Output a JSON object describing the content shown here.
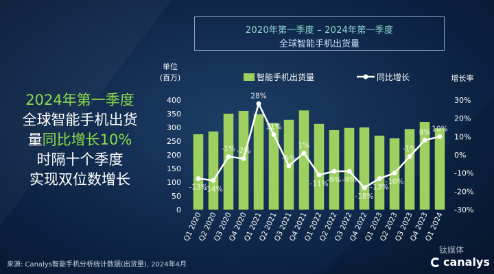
{
  "chart_data": {
    "type": "bar",
    "title": "2020年第一季度 – 2024年第一季度",
    "subtitle": "全球智能手机出货量",
    "categories": [
      "Q1 2020",
      "Q2 2020",
      "Q3 2020",
      "Q4 2020",
      "Q1 2021",
      "Q2 2021",
      "Q3 2021",
      "Q4 2021",
      "Q1 2022",
      "Q2 2022",
      "Q3 2022",
      "Q4 2022",
      "Q1 2023",
      "Q2 2023",
      "Q3 2023",
      "Q4 2023",
      "Q1 2024"
    ],
    "series": [
      {
        "name": "智能手机出货量",
        "type": "bar",
        "axis": "left",
        "color": "#9ed060",
        "values": [
          275,
          285,
          350,
          360,
          348,
          316,
          328,
          362,
          313,
          290,
          298,
          300,
          270,
          260,
          294,
          320,
          297
        ]
      },
      {
        "name": "同比增长",
        "type": "line",
        "axis": "right",
        "color": "#ffffff",
        "values": [
          -13,
          -14,
          -1,
          -2,
          28,
          11,
          -6,
          1,
          -11,
          -9,
          -9,
          -18,
          -13,
          -10,
          -1,
          8,
          10
        ],
        "labels": [
          "-13%",
          "-14%",
          "-1%",
          "-2%",
          "28%",
          "11%",
          "-6%",
          "1%",
          "-11%",
          "-9%",
          "-9%",
          "-18%",
          "-13%",
          "-10%",
          "-1%",
          "8%",
          "10%"
        ]
      }
    ],
    "y_left": {
      "label_line1": "单位",
      "label_line2": "(百万)",
      "ylim": [
        0,
        400
      ],
      "ticks": [
        0,
        50,
        100,
        150,
        200,
        250,
        300,
        350,
        400
      ]
    },
    "y_right": {
      "label": "增长率",
      "ylim": [
        -30,
        30
      ],
      "ticks": [
        -30,
        -20,
        -10,
        0,
        10,
        20,
        30
      ],
      "tick_labels": [
        "-30%",
        "-20%",
        "-10%",
        "0%",
        "10%",
        "20%",
        "30%"
      ]
    },
    "legend_position": "top",
    "grid": false
  },
  "headline": {
    "line1": "2024年第一季度",
    "line2": "全球智能手机出货",
    "line3_plain": "量",
    "line3_highlight": "同比增长10%",
    "line4": "时隔十个季度",
    "line5": "实现双位数增长"
  },
  "source": "来源: Canalys智能手机分析统计数据(出货量), 2024年4月",
  "watermark": "钛媒体",
  "brand": "canalys",
  "colors": {
    "bar": "#9ed060",
    "line": "#ffffff",
    "headline_accent": "#8cdc4a",
    "title_accent": "#8fd8d2"
  }
}
